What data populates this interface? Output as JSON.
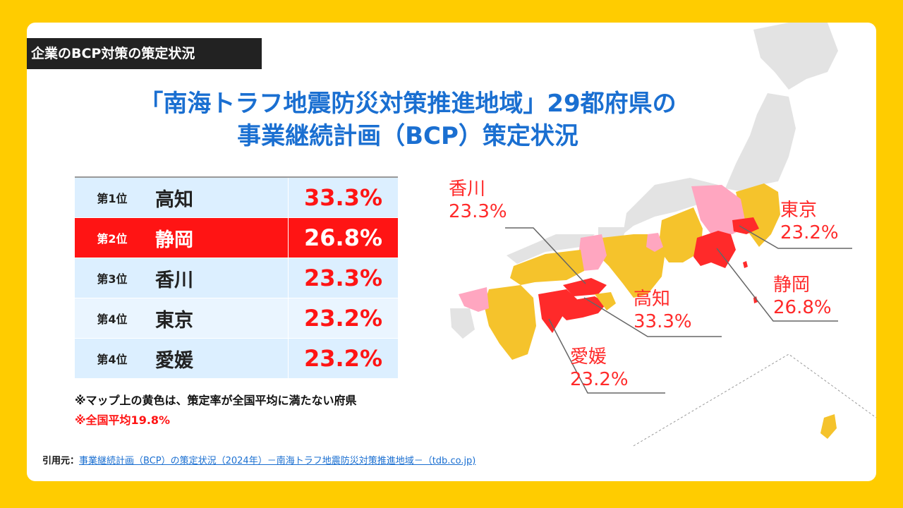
{
  "tag_label": "企業のBCP対策の策定状況",
  "title": {
    "line1": "「南海トラフ地震防災対策推進地域」29都府県の",
    "line2": "事業継続計画（BCP）策定状況"
  },
  "ranking": [
    {
      "rank": "第1位",
      "name": "高知",
      "value": "33.3%"
    },
    {
      "rank": "第2位",
      "name": "静岡",
      "value": "26.8%"
    },
    {
      "rank": "第3位",
      "name": "香川",
      "value": "23.3%"
    },
    {
      "rank": "第4位",
      "name": "東京",
      "value": "23.2%"
    },
    {
      "rank": "第4位",
      "name": "愛媛",
      "value": "23.2%"
    }
  ],
  "notes": {
    "yellow": "※マップ上の黄色は、策定率が全国平均に満たない府県",
    "average": "※全国平均19.8%"
  },
  "source": {
    "label": "引用元：",
    "link": "事業継続計画（BCP）の策定状況（2024年）－南海トラフ地震防災対策推進地域－（tdb.co.jp)"
  },
  "callouts": {
    "kagawa": {
      "name": "香川",
      "value": "23.3%"
    },
    "tokyo": {
      "name": "東京",
      "value": "23.2%"
    },
    "kochi": {
      "name": "高知",
      "value": "33.3%"
    },
    "shizuoka": {
      "name": "静岡",
      "value": "26.8%"
    },
    "ehime": {
      "name": "愛媛",
      "value": "23.2%"
    }
  },
  "colors": {
    "below_average": "#f5c32c",
    "top": "#ff2a2a",
    "above_average": "#ffa6c0",
    "other": "#e3e3e3"
  }
}
